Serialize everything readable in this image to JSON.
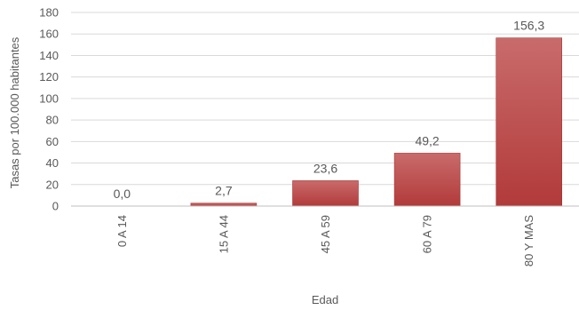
{
  "chart_data": {
    "type": "bar",
    "title": "",
    "xlabel": "Edad",
    "ylabel": "Tasas por 100.000 habitantes",
    "categories": [
      "0 A 14",
      "15 A 44",
      "45 A 59",
      "60 A 79",
      "80 Y MAS"
    ],
    "values": [
      0.0,
      2.7,
      23.6,
      49.2,
      156.3
    ],
    "data_labels": [
      "0,0",
      "2,7",
      "23,6",
      "49,2",
      "156,3"
    ],
    "ylim": [
      0,
      180
    ],
    "yticks": [
      0,
      20,
      40,
      60,
      80,
      100,
      120,
      140,
      160,
      180
    ],
    "grid": true,
    "legend": "none",
    "colors": {
      "bar_top": "#c96b6b",
      "bar_bottom": "#b23a3a",
      "bar_stroke": "#a83232"
    }
  }
}
